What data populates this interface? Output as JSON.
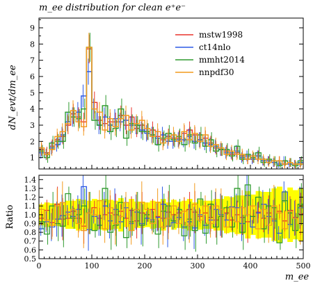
{
  "figure": {
    "title": "m_ee distribution for clean e⁺e⁻",
    "top_ylabel": "dN_evt/dm_ee",
    "bottom_ylabel": "Ratio",
    "xlabel": "m_ee"
  },
  "chart_data": [
    {
      "type": "line",
      "title": "m_ee distribution for clean e⁺e⁻",
      "xlabel": "m_ee",
      "ylabel": "dN_evt/dm_ee",
      "xlim": [
        0,
        500
      ],
      "ylim": [
        0.3,
        9.6
      ],
      "grid": false,
      "legend": "top-right",
      "x_ticks": [
        0,
        100,
        200,
        300,
        400,
        500
      ],
      "y_ticks": [
        1,
        2,
        3,
        4,
        5,
        6,
        7,
        8,
        9
      ],
      "bin_width": 10,
      "x_bin_edges": [
        0,
        500
      ],
      "series": [
        {
          "name": "mstw1998",
          "color": "#e8322b",
          "values": [
            1.5,
            1.3,
            1.7,
            2.1,
            2.3,
            3.0,
            3.7,
            3.5,
            3.2,
            7.7,
            4.4,
            3.3,
            3.1,
            3.2,
            3.2,
            3.6,
            3.0,
            3.5,
            2.8,
            3.0,
            2.6,
            2.7,
            2.3,
            2.1,
            2.3,
            2.2,
            2.2,
            2.5,
            2.7,
            2.4,
            2.1,
            2.2,
            1.9,
            1.6,
            1.5,
            1.4,
            1.2,
            1.3,
            1.1,
            0.9,
            1.0,
            1.1,
            0.8,
            0.8,
            0.7,
            0.8,
            0.6,
            0.7,
            0.6,
            0.7
          ]
        },
        {
          "name": "ct14nlo",
          "color": "#2b59e5",
          "values": [
            1.3,
            1.2,
            1.6,
            1.8,
            2.4,
            3.2,
            3.5,
            3.8,
            4.8,
            6.3,
            4.0,
            3.0,
            3.5,
            3.0,
            3.4,
            3.2,
            3.3,
            3.0,
            3.0,
            2.7,
            2.5,
            2.4,
            2.2,
            2.4,
            2.0,
            2.0,
            2.1,
            2.1,
            2.3,
            2.0,
            2.1,
            1.9,
            1.8,
            1.7,
            1.5,
            1.3,
            1.3,
            1.4,
            1.0,
            1.1,
            0.9,
            1.1,
            0.8,
            0.8,
            0.7,
            0.6,
            0.8,
            0.6,
            0.6,
            0.7
          ]
        },
        {
          "name": "mmht2014",
          "color": "#2e9a2e",
          "values": [
            1.4,
            1.0,
            1.9,
            2.0,
            2.0,
            3.8,
            3.5,
            3.4,
            4.0,
            7.8,
            3.3,
            3.0,
            4.2,
            2.6,
            2.8,
            4.0,
            2.2,
            3.1,
            3.0,
            2.6,
            2.6,
            2.4,
            1.8,
            2.2,
            2.5,
            2.1,
            2.3,
            1.8,
            2.4,
            1.9,
            2.4,
            1.7,
            2.1,
            1.4,
            1.5,
            1.5,
            1.1,
            1.7,
            0.9,
            1.2,
            1.0,
            1.3,
            0.7,
            0.9,
            0.8,
            0.5,
            0.8,
            0.7,
            0.5,
            0.8
          ]
        },
        {
          "name": "nnpdf30",
          "color": "#f29a1c",
          "values": [
            1.6,
            1.2,
            1.5,
            2.3,
            2.6,
            3.1,
            3.9,
            3.2,
            2.9,
            7.8,
            4.0,
            3.8,
            2.7,
            3.4,
            2.9,
            3.4,
            3.6,
            2.7,
            3.1,
            3.3,
            2.8,
            2.3,
            2.6,
            1.9,
            2.2,
            2.4,
            2.0,
            2.6,
            2.1,
            2.5,
            2.0,
            2.4,
            1.7,
            1.8,
            1.6,
            1.2,
            1.4,
            1.2,
            1.2,
            0.9,
            1.1,
            0.9,
            0.9,
            0.7,
            0.8,
            0.8,
            0.6,
            0.7,
            0.6,
            0.6
          ]
        }
      ]
    },
    {
      "type": "line",
      "xlabel": "m_ee",
      "ylabel": "Ratio",
      "xlim": [
        0,
        500
      ],
      "ylim": [
        0.5,
        1.45
      ],
      "grid": false,
      "x_ticks": [
        0,
        100,
        200,
        300,
        400,
        500
      ],
      "y_ticks": [
        0.5,
        0.6,
        0.7,
        0.8,
        0.9,
        1.0,
        1.1,
        1.2,
        1.3,
        1.4
      ],
      "bin_width": 10,
      "band": {
        "color": "#ffff00",
        "lower": [
          0.88,
          0.86,
          0.87,
          0.87,
          0.86,
          0.84,
          0.84,
          0.82,
          0.83,
          0.84,
          0.82,
          0.83,
          0.82,
          0.83,
          0.84,
          0.81,
          0.86,
          0.82,
          0.85,
          0.85,
          0.86,
          0.84,
          0.85,
          0.82,
          0.86,
          0.83,
          0.85,
          0.84,
          0.82,
          0.86,
          0.83,
          0.84,
          0.84,
          0.82,
          0.82,
          0.79,
          0.8,
          0.78,
          0.78,
          0.73,
          0.77,
          0.73,
          0.74,
          0.74,
          0.7,
          0.68,
          0.73,
          0.69,
          0.72,
          0.7
        ],
        "upper": [
          1.12,
          1.14,
          1.13,
          1.13,
          1.14,
          1.16,
          1.16,
          1.18,
          1.17,
          1.16,
          1.18,
          1.17,
          1.18,
          1.17,
          1.16,
          1.19,
          1.14,
          1.18,
          1.15,
          1.15,
          1.14,
          1.16,
          1.15,
          1.18,
          1.14,
          1.17,
          1.15,
          1.16,
          1.18,
          1.14,
          1.17,
          1.16,
          1.16,
          1.18,
          1.18,
          1.21,
          1.2,
          1.22,
          1.22,
          1.27,
          1.23,
          1.27,
          1.26,
          1.26,
          1.3,
          1.32,
          1.27,
          1.31,
          1.28,
          1.3
        ]
      },
      "series": [
        {
          "name": "mstw1998",
          "color": "#e8322b",
          "values": [
            0.96,
            1.05,
            0.91,
            1.12,
            0.95,
            0.96,
            1.04,
            0.96,
            0.87,
            1.02,
            1.08,
            0.96,
            1.0,
            1.02,
            1.0,
            1.04,
            0.96,
            1.05,
            0.93,
            1.02,
            1.0,
            1.06,
            0.98,
            0.96,
            1.03,
            1.0,
            1.02,
            1.04,
            1.06,
            1.03,
            0.98,
            1.02,
            0.97,
            0.94,
            0.98,
            1.02,
            0.94,
            1.0,
            0.97,
            0.92,
            0.98,
            1.03,
            0.96,
            1.02,
            0.95,
            1.04,
            0.93,
            1.05,
            0.97,
            1.01
          ]
        },
        {
          "name": "ct14nlo",
          "color": "#2b59e5",
          "values": [
            0.84,
            0.92,
            0.86,
            0.95,
            0.99,
            1.03,
            0.98,
            1.06,
            1.32,
            0.83,
            0.98,
            0.88,
            1.1,
            0.93,
            1.06,
            0.92,
            1.08,
            0.9,
            1.03,
            0.9,
            0.96,
            0.94,
            0.97,
            1.12,
            0.87,
            0.91,
            0.97,
            0.86,
            0.92,
            0.85,
            1.0,
            0.88,
            0.94,
            1.06,
            1.0,
            0.94,
            1.09,
            1.08,
            0.9,
            1.22,
            0.86,
            1.02,
            1.12,
            0.98,
            0.93,
            0.79,
            1.26,
            0.89,
            0.96,
            1.08
          ]
        },
        {
          "name": "mmht2014",
          "color": "#2e9a2e",
          "values": [
            0.92,
            0.78,
            1.1,
            0.9,
            0.87,
            1.24,
            0.96,
            1.0,
            1.1,
            1.02,
            0.82,
            0.88,
            1.3,
            0.8,
            0.88,
            1.14,
            0.74,
            0.92,
            1.06,
            0.88,
            1.0,
            0.92,
            0.78,
            1.04,
            1.1,
            0.93,
            1.06,
            0.76,
            0.95,
            0.82,
            1.18,
            0.79,
            1.12,
            0.86,
            0.98,
            1.08,
            0.86,
            1.3,
            0.8,
            1.34,
            0.98,
            1.2,
            0.84,
            1.1,
            1.08,
            0.68,
            1.16,
            1.02,
            0.82,
            1.12
          ]
        },
        {
          "name": "nnpdf30",
          "color": "#f29a1c",
          "values": [
            1.06,
            0.94,
            0.88,
            1.1,
            1.14,
            1.0,
            1.06,
            0.9,
            0.82,
            1.02,
            1.0,
            1.16,
            0.84,
            1.08,
            0.9,
            0.98,
            1.14,
            0.82,
            1.06,
            1.14,
            1.06,
            0.9,
            1.14,
            0.86,
            0.96,
            1.1,
            0.9,
            1.04,
            0.88,
            1.12,
            0.94,
            1.1,
            0.9,
            1.1,
            1.06,
            0.86,
            1.08,
            0.92,
            1.08,
            1.0,
            1.1,
            0.84,
            1.06,
            0.88,
            1.1,
            1.02,
            0.84,
            1.04,
            0.96,
            0.9
          ]
        }
      ]
    }
  ]
}
